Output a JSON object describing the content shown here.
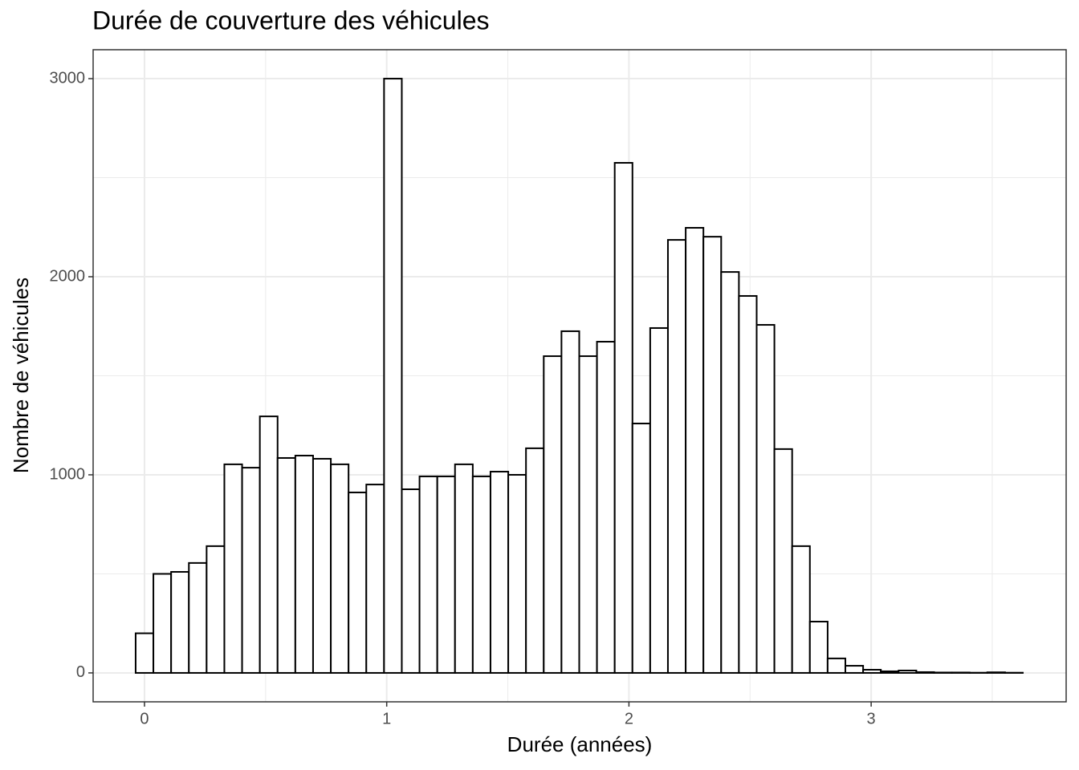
{
  "chart_data": {
    "type": "histogram",
    "title": "Durée de couverture des véhicules",
    "x_label": "Durée (années)",
    "y_label": "Nombre de véhicules",
    "bins": [
      -0.0365,
      0.0368,
      0.11,
      0.1833,
      0.2565,
      0.3298,
      0.403,
      0.4763,
      0.5495,
      0.6228,
      0.696,
      0.7693,
      0.8425,
      0.9158,
      0.989,
      1.0623,
      1.1355,
      1.2088,
      1.282,
      1.3553,
      1.4285,
      1.5018,
      1.575,
      1.6483,
      1.7215,
      1.7948,
      1.868,
      1.9413,
      2.0145,
      2.0878,
      2.161,
      2.2343,
      2.3075,
      2.3808,
      2.454,
      2.5273,
      2.6005,
      2.6738,
      2.747,
      2.8203,
      2.8935,
      2.9668,
      3.04,
      3.1133,
      3.1865,
      3.2598,
      3.333,
      3.4063,
      3.4795,
      3.5528,
      3.626
    ],
    "counts": [
      200,
      500,
      510,
      555,
      640,
      1053,
      1036,
      1295,
      1085,
      1097,
      1081,
      1053,
      911,
      951,
      3000,
      927,
      992,
      992,
      1053,
      992,
      1016,
      1000,
      1134,
      1599,
      1725,
      1599,
      1672,
      2575,
      1259,
      1741,
      2186,
      2247,
      2202,
      2024,
      1903,
      1757,
      1130,
      640,
      259,
      73,
      36,
      16,
      8,
      12,
      4,
      2,
      2,
      1,
      3,
      1
    ],
    "fill": "#ffffff",
    "edge_color": "#000000",
    "xlim": [
      -0.212,
      3.805
    ],
    "ylim": [
      -146,
      3146
    ],
    "xticks": [
      0,
      1,
      2,
      3
    ],
    "yticks": [
      0,
      1000,
      2000,
      3000
    ],
    "grid": true
  }
}
